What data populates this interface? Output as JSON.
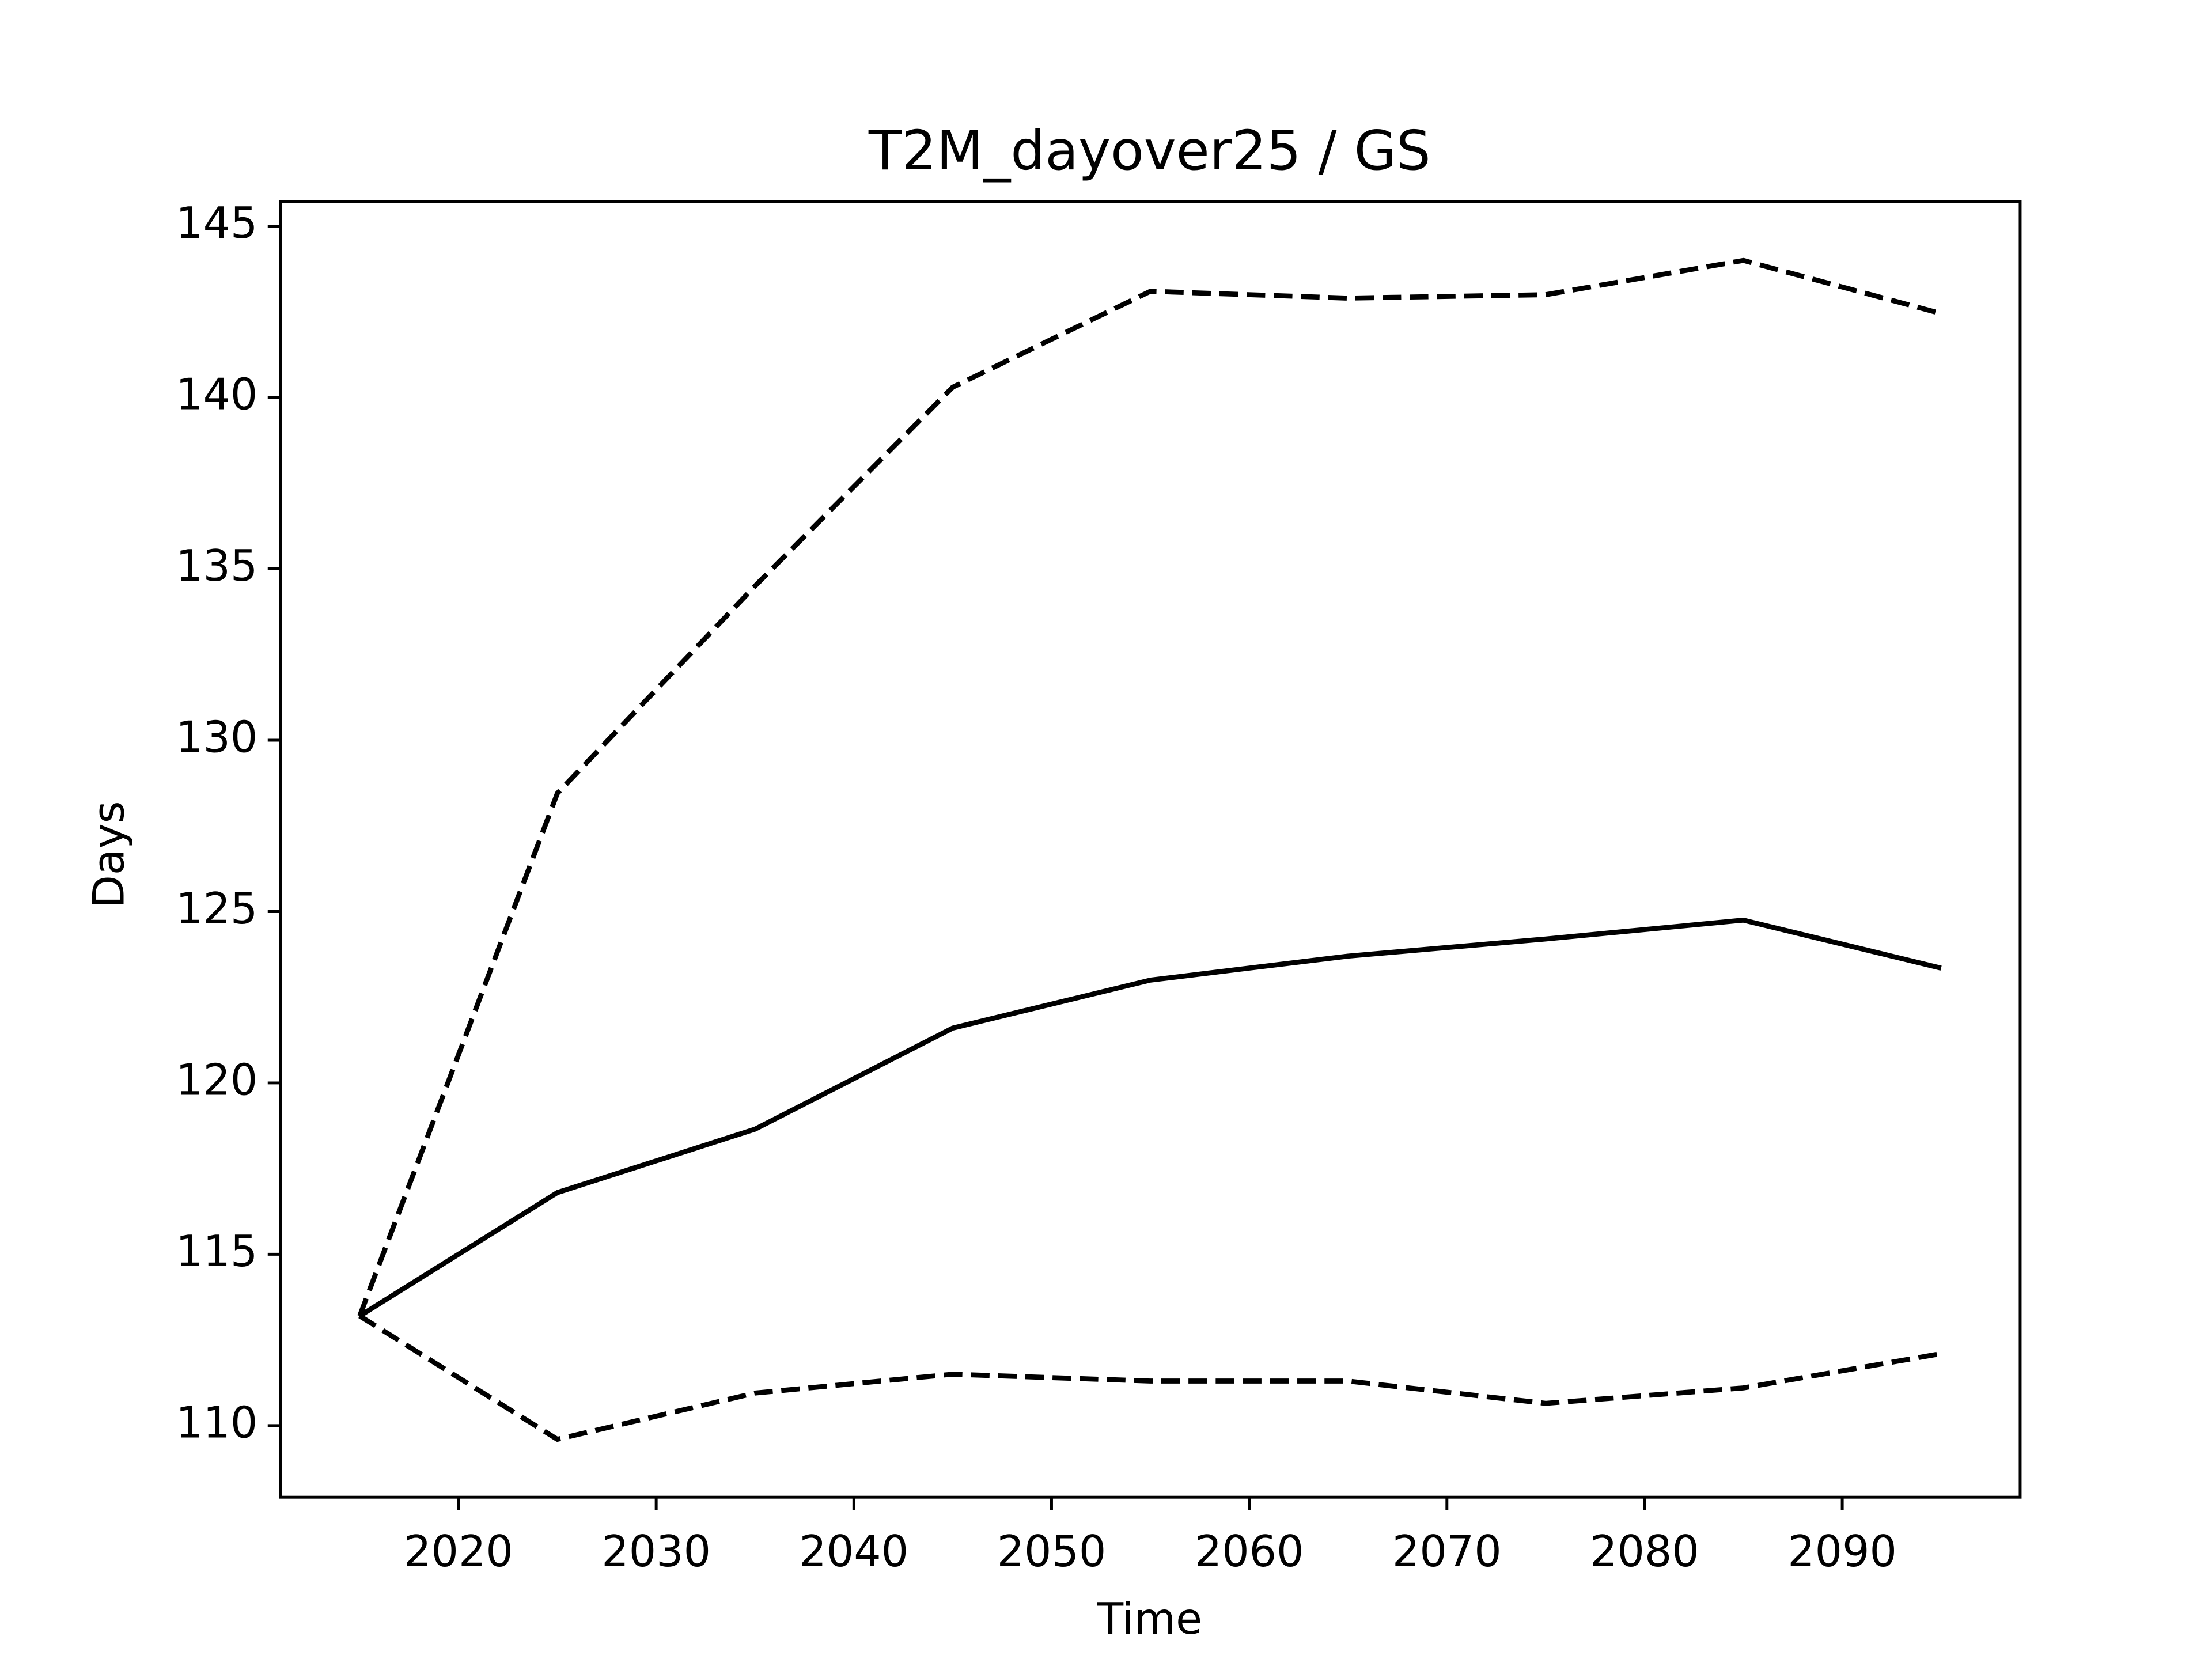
{
  "chart_data": {
    "type": "line",
    "title": "T2M_dayover25 / GS",
    "x_label": "Time",
    "y_label": "Days",
    "x": [
      2015,
      2025,
      2035,
      2045,
      2055,
      2065,
      2075,
      2085,
      2095
    ],
    "series": [
      {
        "color": "#000000",
        "linestyle": "solid",
        "values": [
          113.2,
          116.8,
          118.65,
          121.6,
          123.0,
          123.7,
          124.2,
          124.75,
          123.35
        ]
      },
      {
        "color": "#000000",
        "linestyle": "dashed",
        "values": [
          113.2,
          128.45,
          134.5,
          140.3,
          143.1,
          142.9,
          143.0,
          144.0,
          142.45
        ]
      },
      {
        "color": "#000000",
        "linestyle": "dashed",
        "values": [
          113.2,
          109.6,
          110.95,
          111.5,
          111.3,
          111.3,
          110.65,
          111.1,
          112.1
        ]
      }
    ],
    "xlim": [
      2011,
      2099
    ],
    "xticks": [
      2020,
      2030,
      2040,
      2050,
      2060,
      2070,
      2080,
      2090
    ],
    "ylim": [
      107.91,
      145.71
    ],
    "yticks": [
      110,
      115,
      120,
      125,
      130,
      135,
      140,
      145
    ],
    "grid": false
  }
}
